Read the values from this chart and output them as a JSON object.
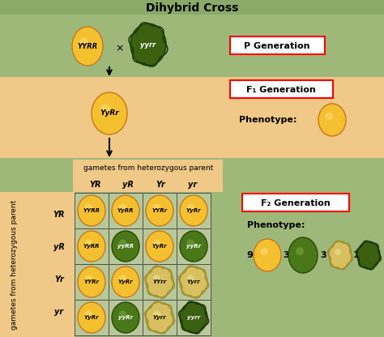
{
  "title": "Dihybrid Cross",
  "p1_label": "YYRR",
  "p2_label": "yyrr",
  "f1_label": "YyRr",
  "p_gen_text": "P Generation",
  "f1_gen_text": "F₁ Generation",
  "f2_gen_text": "F₂ Generation",
  "phenotype_text": "Phenotype:",
  "gametes_top": [
    "YR",
    "yR",
    "Yr",
    "yr"
  ],
  "gametes_left": [
    "YR",
    "yR",
    "Yr",
    "yr"
  ],
  "grid_labels": [
    [
      "YYRR",
      "YyRR",
      "YYRr",
      "YyRr"
    ],
    [
      "YyRR",
      "yyRR",
      "YyRr",
      "yyRr"
    ],
    [
      "YYRr",
      "YyRr",
      "YYrr",
      "Yyrr"
    ],
    [
      "YyRr",
      "yyRr",
      "Yyrr",
      "yyrr"
    ]
  ],
  "bg_title": "#8aaa6a",
  "bg_green": "#9eb87a",
  "bg_orange": "#f0c888",
  "yellow_main": "#f5c030",
  "yellow_shine": "#fbe080",
  "yellow_edge": "#c87818",
  "green_main": "#4a7818",
  "green_shine": "#78a840",
  "green_edge": "#284808",
  "yellow_wr_main": "#d8c060",
  "yellow_wr_shine": "#ece898",
  "yellow_wr_edge": "#a09030",
  "green_wr_main": "#3a6010",
  "green_wr_edge": "#1a3808"
}
